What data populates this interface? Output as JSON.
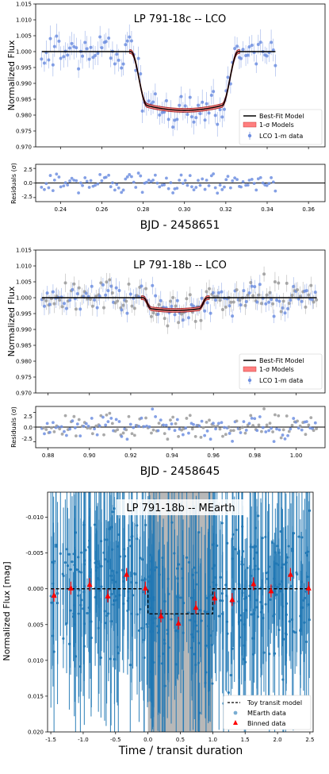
{
  "chart_data": [
    {
      "type": "scatter",
      "title": "LP 791-18c -- LCO",
      "ylabel": "Normalized Flux",
      "xlabel": "BJD - 2458651",
      "xlim": [
        0.228,
        0.368
      ],
      "ylim": [
        0.97,
        1.015
      ],
      "xticks": [
        "0.24",
        "0.26",
        "0.28",
        "0.30",
        "0.32",
        "0.34",
        "0.36"
      ],
      "yticks": [
        "0.970",
        "0.975",
        "0.980",
        "0.985",
        "0.990",
        "0.995",
        "1.000",
        "1.005",
        "1.010",
        "1.015"
      ],
      "legend": {
        "placement": "lower-right",
        "entries": [
          "Best-Fit Model",
          "1-σ Models",
          "LCO 1-m data"
        ]
      },
      "transit": {
        "t1": 0.274,
        "t2": 0.282,
        "t3": 0.318,
        "t4": 0.326,
        "baseline": 1.0,
        "depth_flux": 0.9815,
        "curvature": 0.0015
      },
      "data_range": [
        0.231,
        0.344
      ],
      "n_points": 110,
      "scatter": 0.0032,
      "residuals": {
        "ylabel": "Residuals (σ)",
        "ylim": [
          -3.2,
          3.2
        ],
        "yticks": [
          "2.5",
          "0.0",
          "-2.5"
        ]
      },
      "colors": {
        "data": "#6f8fe0",
        "model": "#000000",
        "band": "#ff7f7f",
        "band_edge": "#8b0000"
      }
    },
    {
      "type": "scatter",
      "title": "LP 791-18b -- LCO",
      "ylabel": "Normalized Flux",
      "xlabel": "BJD - 2458645",
      "xlim": [
        0.874,
        1.014
      ],
      "ylim": [
        0.97,
        1.015
      ],
      "xticks": [
        "0.88",
        "0.90",
        "0.92",
        "0.94",
        "0.96",
        "0.98",
        "1.00"
      ],
      "yticks": [
        "0.970",
        "0.975",
        "0.980",
        "0.985",
        "0.990",
        "0.995",
        "1.000",
        "1.005",
        "1.010",
        "1.015"
      ],
      "legend": {
        "placement": "lower-right",
        "entries": [
          "Best-Fit Model",
          "1-σ Models",
          "LCO 1-m data"
        ]
      },
      "transit": {
        "t1": 0.926,
        "t2": 0.93,
        "t3": 0.953,
        "t4": 0.957,
        "baseline": 1.0,
        "depth_flux": 0.996,
        "curvature": 0.0005
      },
      "data_range": [
        0.877,
        1.01
      ],
      "n_points": 200,
      "scatter": 0.0024,
      "residuals": {
        "ylabel": "Residuals (σ)",
        "ylim": [
          -3.5,
          3.5
        ],
        "yticks": [
          "2.5",
          "0.0",
          "-2.5"
        ]
      },
      "colors": {
        "data": "#6f8fe0",
        "data2": "#9a9a9a",
        "model": "#000000",
        "band": "#ff7f7f",
        "band_edge": "#8b0000"
      }
    },
    {
      "type": "scatter",
      "title": "LP 791-18b -- MEarth",
      "ylabel": "Normalized Flux [mag]",
      "xlabel": "Time / transit duration",
      "xlim": [
        -1.55,
        2.55
      ],
      "ylim": [
        0.02,
        -0.0135
      ],
      "xticks": [
        "-1.5",
        "-1.0",
        "-0.5",
        "0.0",
        "0.5",
        "1.0",
        "1.5",
        "2.0",
        "2.5"
      ],
      "yticks": [
        "-0.010",
        "-0.005",
        "0.000",
        "0.005",
        "0.010",
        "0.015",
        "0.020"
      ],
      "y_inverted": true,
      "legend": {
        "placement": "lower-right",
        "entries": [
          "Toy transit model",
          "MEarth data",
          "Binned data"
        ]
      },
      "shaded_interval": [
        0.0,
        1.0
      ],
      "toy_model": {
        "baseline": 0.0,
        "depth": 0.0035,
        "start": 0.0,
        "end": 1.0
      },
      "n_points": 420,
      "binned": {
        "x": [
          -1.45,
          -1.19,
          -0.9,
          -0.62,
          -0.33,
          -0.04,
          0.2,
          0.47,
          0.74,
          1.03,
          1.3,
          1.63,
          1.9,
          2.2,
          2.48
        ],
        "y": [
          0.0009,
          -0.0001,
          -0.0006,
          0.001,
          -0.002,
          -0.0001,
          0.0038,
          0.0048,
          0.0026,
          0.0013,
          0.0015,
          -0.0007,
          0.0003,
          -0.002,
          -0.0001
        ]
      },
      "colors": {
        "data": "#1f77b4",
        "binned": "#ff0000",
        "shade": "#b0b0b0",
        "model": "#000000"
      }
    }
  ]
}
